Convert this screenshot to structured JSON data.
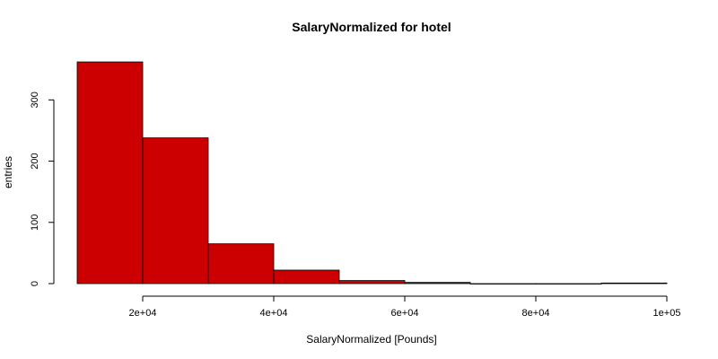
{
  "chart_data": {
    "type": "bar",
    "title": "SalaryNormalized for hotel",
    "xlabel": "SalaryNormalized [Pounds]",
    "ylabel": "entries",
    "bin_edges": [
      10000,
      20000,
      30000,
      40000,
      50000,
      60000,
      70000,
      80000,
      90000,
      100000
    ],
    "values": [
      362,
      238,
      65,
      22,
      5,
      2,
      0,
      0,
      1
    ],
    "xlim": [
      10000,
      100000
    ],
    "ylim": [
      0,
      362
    ],
    "x_ticks": [
      20000,
      40000,
      60000,
      80000,
      100000
    ],
    "x_tick_labels": [
      "2e+04",
      "4e+04",
      "6e+04",
      "8e+04",
      "1e+05"
    ],
    "y_ticks": [
      0,
      100,
      200,
      300
    ],
    "y_tick_labels": [
      "0",
      "100",
      "200",
      "300"
    ],
    "bar_color": "#cc0000",
    "grid": false
  }
}
